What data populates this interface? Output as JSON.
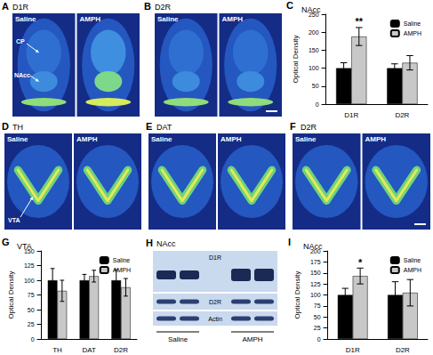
{
  "figure": {
    "panels": [
      {
        "letter": "A",
        "title": "D1R",
        "images": [
          "Saline",
          "AMPH"
        ],
        "annotations": [
          "CP",
          "NAcc"
        ]
      },
      {
        "letter": "B",
        "title": "D2R",
        "images": [
          "Saline",
          "AMPH"
        ]
      },
      {
        "letter": "D",
        "title": "TH",
        "images": [
          "Saline",
          "AMPH"
        ],
        "annotations": [
          "VTA"
        ]
      },
      {
        "letter": "E",
        "title": "DAT",
        "images": [
          "Saline",
          "AMPH"
        ]
      },
      {
        "letter": "F",
        "title": "D2R",
        "images": [
          "Saline",
          "AMPH"
        ]
      },
      {
        "letter": "H",
        "title": "NAcc",
        "blot_rows": [
          "D1R",
          "D2R",
          "Actin"
        ],
        "lanes": [
          "Saline",
          "AMPH"
        ]
      }
    ],
    "chart_letters": [
      "C",
      "G",
      "I"
    ]
  },
  "chart_data": [
    {
      "type": "bar",
      "title": "NAcc",
      "ylabel": "Optical Density",
      "categories": [
        "D1R",
        "D2R"
      ],
      "series": [
        {
          "name": "Saline",
          "color": "#000000",
          "values": [
            100,
            100
          ],
          "errors": [
            15,
            12
          ]
        },
        {
          "name": "AMPH",
          "color": "#c8c8c8",
          "values": [
            188,
            115
          ],
          "errors": [
            25,
            20
          ]
        }
      ],
      "ylim": [
        0,
        250
      ],
      "yticks": [
        0,
        50,
        100,
        150,
        200,
        250
      ],
      "grid": false,
      "legend": "upper right",
      "annotations": [
        {
          "text": "**",
          "category": "D1R",
          "series": "AMPH"
        }
      ]
    },
    {
      "type": "bar",
      "title": "VTA",
      "ylabel": "Optical Density",
      "categories": [
        "TH",
        "DAT",
        "D2R"
      ],
      "series": [
        {
          "name": "Saline",
          "color": "#000000",
          "values": [
            100,
            100,
            100
          ],
          "errors": [
            20,
            10,
            18
          ]
        },
        {
          "name": "AMPH",
          "color": "#c8c8c8",
          "values": [
            82,
            107,
            88
          ],
          "errors": [
            18,
            10,
            15
          ]
        }
      ],
      "ylim": [
        0,
        150
      ],
      "yticks": [
        0,
        25,
        50,
        75,
        100,
        125,
        150
      ],
      "grid": false,
      "legend": "upper right"
    },
    {
      "type": "bar",
      "title": "NAcc",
      "ylabel": "Optical Density",
      "categories": [
        "D1R",
        "D2R"
      ],
      "series": [
        {
          "name": "Saline",
          "color": "#000000",
          "values": [
            100,
            100
          ],
          "errors": [
            15,
            30
          ]
        },
        {
          "name": "AMPH",
          "color": "#c8c8c8",
          "values": [
            143,
            105
          ],
          "errors": [
            18,
            30
          ]
        }
      ],
      "ylim": [
        0,
        200
      ],
      "yticks": [
        0,
        25,
        50,
        75,
        100,
        125,
        150,
        175,
        200
      ],
      "grid": false,
      "legend": "upper right",
      "annotations": [
        {
          "text": "*",
          "category": "D1R",
          "series": "AMPH"
        }
      ]
    }
  ]
}
